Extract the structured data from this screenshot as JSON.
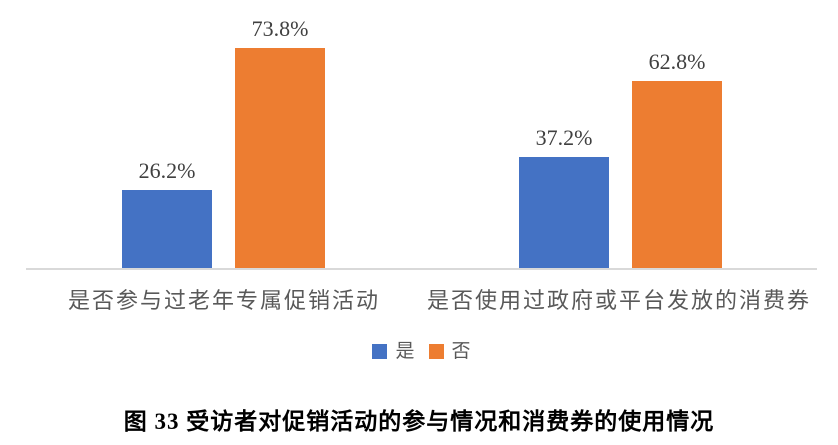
{
  "figure": {
    "caption": "图 33 受访者对促销活动的参与情况和消费券的使用情况"
  },
  "chart_data": {
    "type": "bar",
    "title": "",
    "categories": [
      "是否参与过老年专属促销活动",
      "是否使用过政府或平台发放的消费券"
    ],
    "series": [
      {
        "name": "是",
        "key": "yes",
        "color": "#4472C4",
        "values": [
          26.2,
          37.2
        ],
        "labels": [
          "26.2%",
          "37.2%"
        ]
      },
      {
        "name": "否",
        "key": "no",
        "color": "#ED7D31",
        "values": [
          73.8,
          62.8
        ],
        "labels": [
          "73.8%",
          "62.8%"
        ]
      }
    ],
    "value_unit": "%",
    "ylim": [
      0,
      90
    ],
    "grid": false,
    "y_axis_visible": false,
    "data_labels_position": "outside-end",
    "legend_position": "bottom",
    "legend_items": [
      {
        "label": "是",
        "color": "#4472C4"
      },
      {
        "label": "否",
        "color": "#ED7D31"
      }
    ]
  },
  "colors": {
    "series_yes": "#4472C4",
    "series_no": "#ED7D31",
    "axis_line": "#D9D9D9",
    "data_label_text": "#404040",
    "category_text": "#595959",
    "caption_text": "#000000",
    "background": "#FFFFFF"
  }
}
